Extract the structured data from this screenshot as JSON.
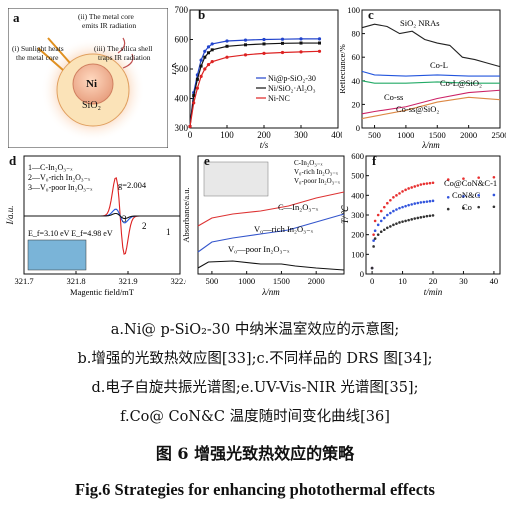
{
  "panels": {
    "a": {
      "label": "a",
      "notes": [
        "(ii) The metal core",
        "emits IR radiation",
        "(i) Sunlight heats",
        "the metal core",
        "(iii) The silica shell",
        "traps IR radiation"
      ],
      "core": "Ni",
      "shell": "SiO₂"
    },
    "b": {
      "label": "b",
      "ylabel": "T/K",
      "xlabel": "t/s",
      "legend": [
        "Ni@p-SiO₂-30",
        "Ni/SiO₂·Al₂O₃",
        "Ni-NC"
      ]
    },
    "c": {
      "label": "c",
      "ylabel": "Reflectance/%",
      "xlabel": "λ/nm",
      "annotations": [
        "SiO₂ NRAs",
        "Co-L",
        "Co-L@SiO₂",
        "Co-ss",
        "Co-ss@SiO₂"
      ]
    },
    "d": {
      "label": "d",
      "ylabel": "I/a.u.",
      "xlabel": "Magentic field/mT",
      "legend": [
        "1—C-In₂O₃₋ₓ",
        "2—V₀-rich In₂O₃₋ₓ",
        "3—V₀-poor In₂O₃₋ₓ"
      ],
      "g_label": "g=2.004",
      "energy_label": "E_f=3.10 eV E_f=4.98 eV",
      "curve_nums": [
        "2",
        "3",
        "1"
      ]
    },
    "e": {
      "label": "e",
      "ylabel": "Absorbance/a.u.",
      "xlabel": "λ/nm",
      "legend": [
        "C-In₂O₃₋ₓ",
        "V₀-rich In₂O₃₋ₓ",
        "V₀-poor In₂O₃₋ₓ"
      ],
      "annotations": [
        "C—In₂O₃₋ₓ",
        "V₀—rich In₂O₃₋ₓ",
        "V₀—poor In₂O₃₋ₓ"
      ]
    },
    "f": {
      "label": "f",
      "ylabel": "T/℃",
      "xlabel": "t/min",
      "annotations": [
        "Co@CoN&C-1",
        "CoN&C",
        "Co"
      ]
    }
  },
  "captions": {
    "line1": "a.Ni@ p-SiO₂-30 中纳米温室效应的示意图;",
    "line2": "b.增强的光致热效应图[33];c.不同样品的 DRS 图[34];",
    "line3": "d.电子自旋共振光谱图;e.UV-Vis-NIR 光谱图[35];",
    "line4": "f.Co@ CoN&C 温度随时间变化曲线[36]",
    "title_cn": "图 6    增强光致热效应的策略",
    "title_en": "Fig.6    Strategies for enhancing photothermal effects"
  },
  "chart_data": [
    {
      "type": "line",
      "panel": "b",
      "xlabel": "t/s",
      "ylabel": "T/K",
      "xlim": [
        0,
        400
      ],
      "ylim": [
        300,
        700
      ],
      "xticks": [
        0,
        100,
        200,
        300,
        400
      ],
      "yticks": [
        300,
        400,
        500,
        600,
        700
      ],
      "series": [
        {
          "name": "Ni@p-SiO₂-30",
          "color": "#2244cc",
          "x": [
            0,
            10,
            20,
            30,
            40,
            50,
            60,
            100,
            150,
            200,
            250,
            300,
            350
          ],
          "y": [
            305,
            420,
            480,
            530,
            560,
            575,
            585,
            595,
            598,
            600,
            601,
            602,
            602
          ]
        },
        {
          "name": "Ni/SiO₂·Al₂O₃",
          "color": "#111111",
          "x": [
            0,
            10,
            20,
            30,
            40,
            50,
            60,
            100,
            150,
            200,
            250,
            300,
            350
          ],
          "y": [
            305,
            410,
            465,
            510,
            540,
            555,
            565,
            577,
            582,
            585,
            587,
            588,
            588
          ]
        },
        {
          "name": "Ni-NC",
          "color": "#dd2222",
          "x": [
            0,
            10,
            20,
            30,
            40,
            50,
            60,
            100,
            150,
            200,
            250,
            300,
            350
          ],
          "y": [
            305,
            385,
            435,
            475,
            500,
            515,
            525,
            540,
            548,
            553,
            556,
            558,
            560
          ]
        }
      ]
    },
    {
      "type": "line",
      "panel": "c",
      "xlabel": "λ/nm",
      "ylabel": "Reflectance/%",
      "xlim": [
        300,
        2500
      ],
      "ylim": [
        0,
        100
      ],
      "xticks": [
        500,
        1000,
        1500,
        2000,
        2500
      ],
      "yticks": [
        0,
        20,
        40,
        60,
        80,
        100
      ],
      "series": [
        {
          "name": "SiO₂ NRAs",
          "color": "#222222",
          "x": [
            300,
            500,
            700,
            900,
            1100,
            1300,
            1500,
            1700,
            1900,
            2100,
            2300,
            2500
          ],
          "y": [
            85,
            88,
            86,
            80,
            82,
            75,
            72,
            70,
            60,
            58,
            55,
            52
          ]
        },
        {
          "name": "Co-L",
          "color": "#2255dd",
          "x": [
            300,
            500,
            1000,
            1500,
            2000,
            2500
          ],
          "y": [
            48,
            45,
            44,
            45,
            44,
            44
          ]
        },
        {
          "name": "Co-L@SiO₂",
          "color": "#22aa66",
          "x": [
            300,
            500,
            1000,
            1500,
            2000,
            2500
          ],
          "y": [
            40,
            38,
            38,
            39,
            38,
            38
          ]
        },
        {
          "name": "Co-ss",
          "color": "#cc2266",
          "x": [
            300,
            500,
            1000,
            1500,
            2000,
            2500
          ],
          "y": [
            12,
            14,
            18,
            25,
            30,
            32
          ]
        },
        {
          "name": "Co-ss@SiO₂",
          "color": "#dd8844",
          "x": [
            300,
            500,
            1000,
            1500,
            2000,
            2500
          ],
          "y": [
            8,
            10,
            15,
            22,
            26,
            24
          ]
        }
      ]
    },
    {
      "type": "line",
      "panel": "d",
      "xlabel": "Magentic field/mT",
      "ylabel": "I/a.u.",
      "xlim": [
        321.7,
        322.0
      ],
      "xticks": [
        321.7,
        321.8,
        321.9,
        322.0
      ],
      "series": [
        {
          "name": "1—C-In₂O₃₋ₓ",
          "color": "#dd2222"
        },
        {
          "name": "2—V₀-rich In₂O₃₋ₓ",
          "color": "#2255dd"
        },
        {
          "name": "3—V₀-poor In₂O₃₋ₓ",
          "color": "#111111"
        }
      ]
    },
    {
      "type": "line",
      "panel": "e",
      "xlabel": "λ/nm",
      "ylabel": "Absorbance/a.u.",
      "xlim": [
        300,
        2400
      ],
      "xticks": [
        500,
        1000,
        1500,
        2000
      ],
      "series": [
        {
          "name": "C-In₂O₃₋ₓ",
          "color": "#dd3333"
        },
        {
          "name": "V₀-rich In₂O₃₋ₓ",
          "color": "#3355cc"
        },
        {
          "name": "V₀-poor In₂O₃₋ₓ",
          "color": "#111111"
        }
      ]
    },
    {
      "type": "scatter",
      "panel": "f",
      "xlabel": "t/min",
      "ylabel": "T/℃",
      "xlim": [
        -2,
        42
      ],
      "ylim": [
        0,
        600
      ],
      "xticks": [
        0,
        10,
        20,
        30,
        40
      ],
      "yticks": [
        0,
        100,
        200,
        300,
        400,
        500,
        600
      ],
      "series": [
        {
          "name": "Co@CoN&C-1",
          "color": "#e83030",
          "x": [
            0,
            0.5,
            1,
            2,
            3,
            4,
            5,
            6,
            7,
            8,
            9,
            10,
            11,
            12,
            13,
            14,
            15,
            16,
            17,
            18,
            19,
            20,
            25,
            30,
            35,
            40
          ],
          "y": [
            30,
            200,
            270,
            300,
            320,
            340,
            360,
            375,
            390,
            400,
            410,
            420,
            428,
            435,
            440,
            445,
            450,
            455,
            458,
            460,
            462,
            464,
            480,
            485,
            490,
            492
          ]
        },
        {
          "name": "CoN&C",
          "color": "#3355dd",
          "x": [
            0,
            0.5,
            1,
            2,
            3,
            4,
            5,
            6,
            7,
            8,
            9,
            10,
            11,
            12,
            13,
            14,
            15,
            16,
            17,
            18,
            19,
            20,
            25,
            30,
            35,
            40
          ],
          "y": [
            30,
            170,
            220,
            250,
            270,
            285,
            300,
            310,
            320,
            328,
            335,
            340,
            345,
            350,
            354,
            358,
            361,
            364,
            366,
            368,
            370,
            372,
            390,
            395,
            400,
            402
          ]
        },
        {
          "name": "Co",
          "color": "#333333",
          "x": [
            0,
            0.5,
            1,
            2,
            3,
            4,
            5,
            6,
            7,
            8,
            9,
            10,
            11,
            12,
            13,
            14,
            15,
            16,
            17,
            18,
            19,
            20,
            25,
            30,
            35,
            40
          ],
          "y": [
            30,
            140,
            180,
            200,
            215,
            225,
            235,
            242,
            250,
            256,
            262,
            266,
            270,
            274,
            278,
            282,
            285,
            288,
            291,
            294,
            296,
            298,
            330,
            335,
            340,
            342
          ]
        }
      ]
    }
  ]
}
